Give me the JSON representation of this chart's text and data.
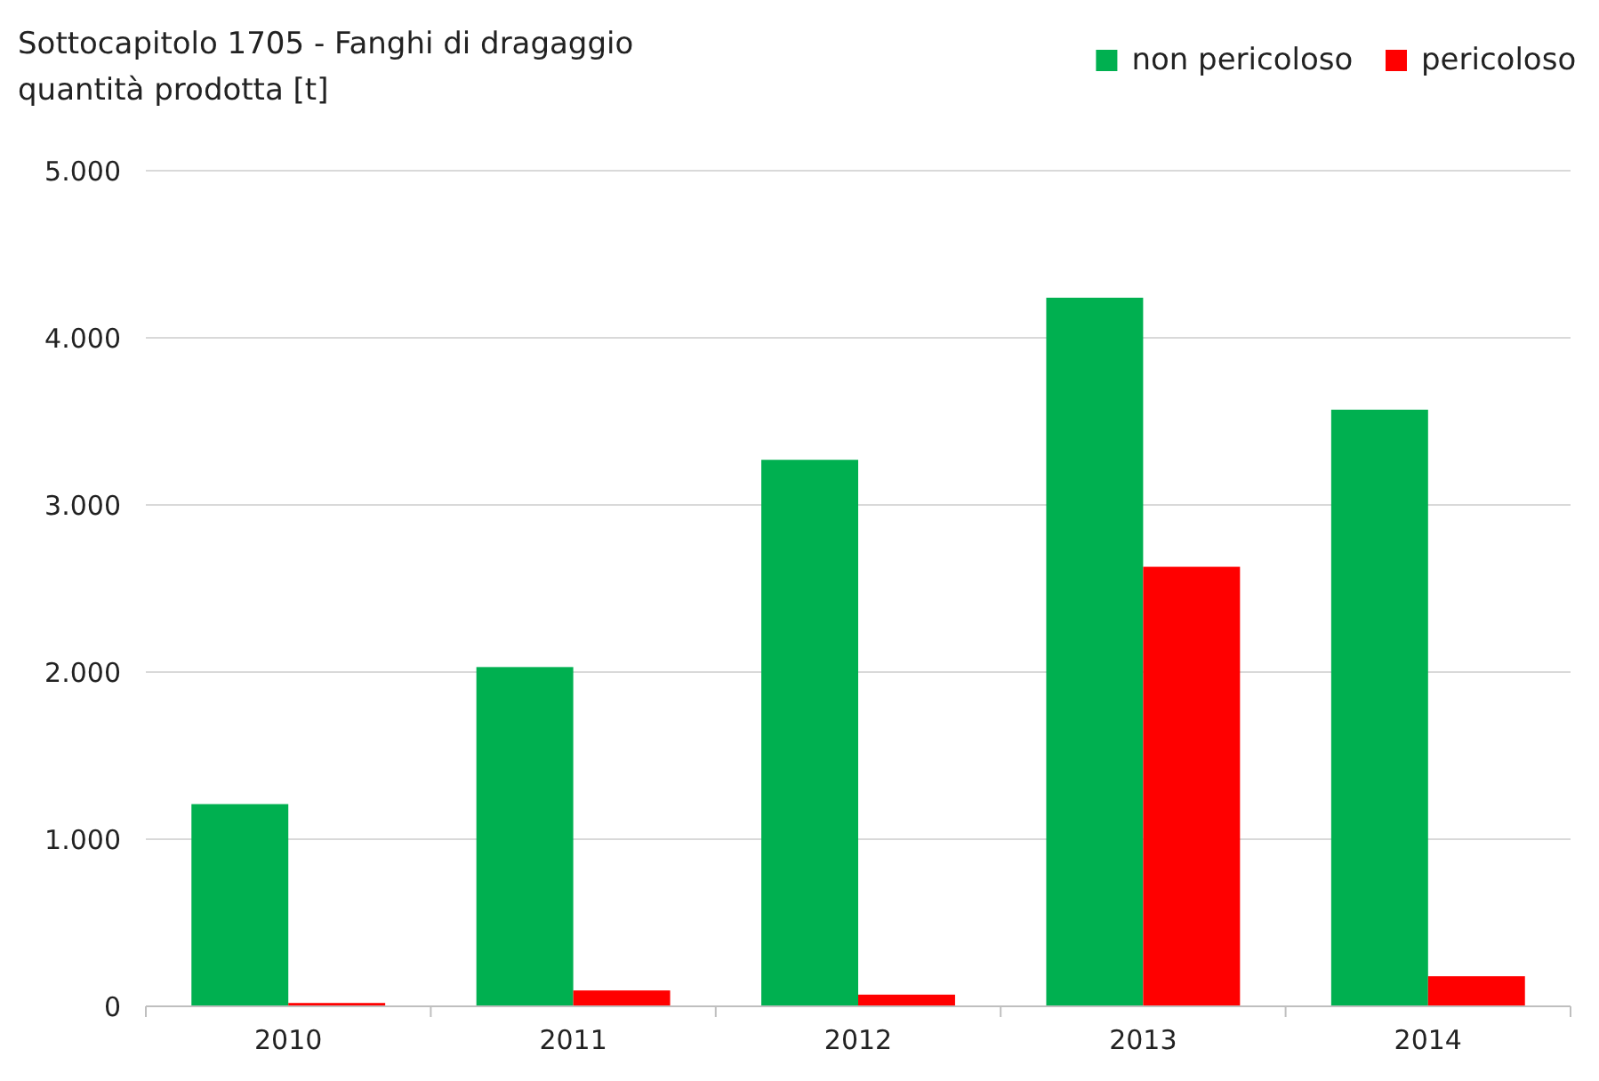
{
  "chart_data": {
    "type": "bar",
    "title": "Sottocapitolo 1705 - Fanghi di dragaggio",
    "subtitle": "quantità prodotta [t]",
    "categories": [
      "2010",
      "2011",
      "2012",
      "2013",
      "2014"
    ],
    "series": [
      {
        "name": "non pericoloso",
        "color": "#00b050",
        "values": [
          1210,
          2030,
          3270,
          4240,
          3570
        ]
      },
      {
        "name": "pericoloso",
        "color": "#ff0000",
        "values": [
          20,
          95,
          70,
          2630,
          180
        ]
      }
    ],
    "ylim": [
      0,
      5000
    ],
    "yticks": [
      0,
      {
        "value": 1000,
        "label": "1.000"
      },
      {
        "value": 2000,
        "label": "2.000"
      },
      {
        "value": 3000,
        "label": "3.000"
      },
      {
        "value": 4000,
        "label": "4.000"
      },
      {
        "value": 5000,
        "label": "5.000"
      }
    ],
    "grid": "y",
    "legend": "top right"
  }
}
